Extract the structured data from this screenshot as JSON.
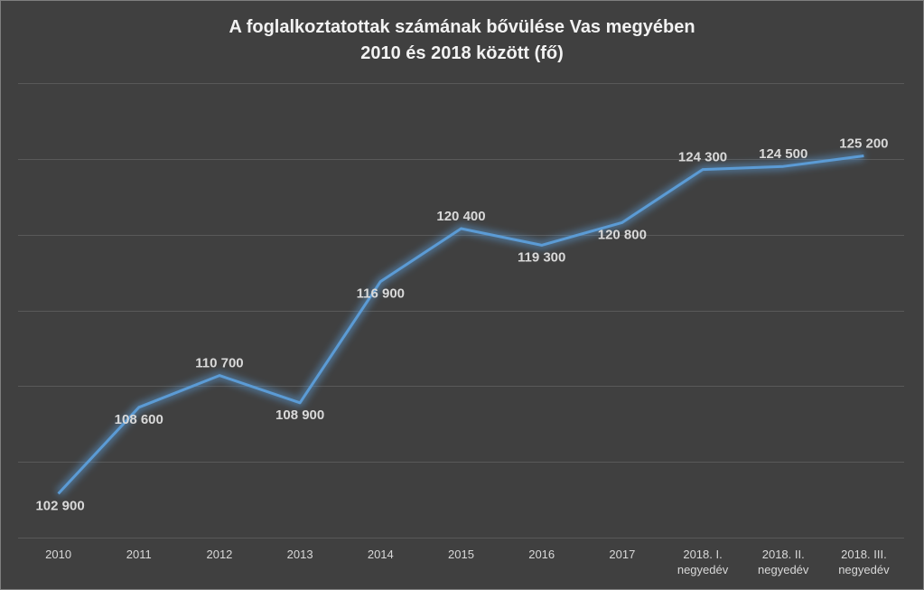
{
  "chart_data": {
    "type": "line",
    "title": "A foglalkoztatottak számának bővülése Vas megyében",
    "subtitle": "2010 és 2018 között (fő)",
    "categories": [
      [
        "2010"
      ],
      [
        "2011"
      ],
      [
        "2012"
      ],
      [
        "2013"
      ],
      [
        "2014"
      ],
      [
        "2015"
      ],
      [
        "2016"
      ],
      [
        "2017"
      ],
      [
        "2018. I.",
        "negyedév"
      ],
      [
        "2018. II.",
        "negyedév"
      ],
      [
        "2018. III.",
        "negyedév"
      ]
    ],
    "values": [
      102900,
      108600,
      110700,
      108900,
      116900,
      120400,
      119300,
      120800,
      124300,
      124500,
      125200
    ],
    "data_labels": [
      "102 900",
      "108 600",
      "110 700",
      "108 900",
      "116 900",
      "120 400",
      "119 300",
      "120 800",
      "124 300",
      "124 500",
      "125 200"
    ],
    "label_position": [
      "below",
      "below",
      "above",
      "below",
      "below",
      "above",
      "below",
      "below",
      "above",
      "above",
      "above"
    ],
    "ylim": [
      100000,
      130000
    ],
    "y_gridlines": [
      105000,
      110000,
      115000,
      120000,
      125000,
      130000
    ],
    "y_tick_labels_visible": false,
    "grid": true,
    "legend": "none",
    "colors": {
      "background": "#404040",
      "line": "#5b9bd5",
      "glow": "#5b9bd5",
      "grid": "#595959",
      "text": "#d9d9d9",
      "title": "#f2f2f2"
    }
  }
}
